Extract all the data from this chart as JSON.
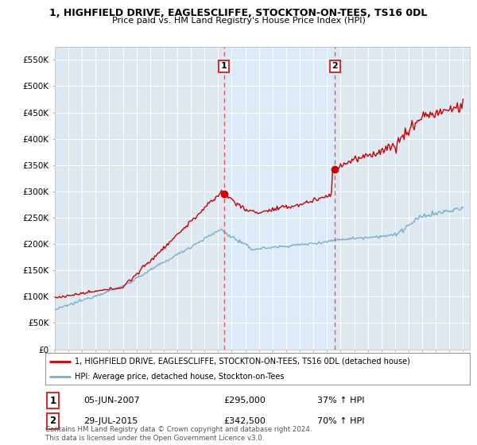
{
  "title_line1": "1, HIGHFIELD DRIVE, EAGLESCLIFFE, STOCKTON-ON-TEES, TS16 0DL",
  "title_line2": "Price paid vs. HM Land Registry's House Price Index (HPI)",
  "ylabel_ticks": [
    "£0",
    "£50K",
    "£100K",
    "£150K",
    "£200K",
    "£250K",
    "£300K",
    "£350K",
    "£400K",
    "£450K",
    "£500K",
    "£550K"
  ],
  "ytick_values": [
    0,
    50000,
    100000,
    150000,
    200000,
    250000,
    300000,
    350000,
    400000,
    450000,
    500000,
    550000
  ],
  "ylim": [
    0,
    575000
  ],
  "xlim_start": 1995.0,
  "xlim_end": 2025.5,
  "color_red": "#cc0000",
  "color_blue": "#7aaecc",
  "color_dashed": "#ee5555",
  "color_shade": "#ddeeff",
  "marker1_x": 2007.43,
  "marker1_y": 295000,
  "marker2_x": 2015.58,
  "marker2_y": 342500,
  "legend_line1": "1, HIGHFIELD DRIVE, EAGLESCLIFFE, STOCKTON-ON-TEES, TS16 0DL (detached house)",
  "legend_line2": "HPI: Average price, detached house, Stockton-on-Tees",
  "annotation1_date": "05-JUN-2007",
  "annotation1_price": "£295,000",
  "annotation1_hpi": "37% ↑ HPI",
  "annotation2_date": "29-JUL-2015",
  "annotation2_price": "£342,500",
  "annotation2_hpi": "70% ↑ HPI",
  "footer": "Contains HM Land Registry data © Crown copyright and database right 2024.\nThis data is licensed under the Open Government Licence v3.0.",
  "bg_color": "#ffffff",
  "plot_bg_color": "#dde8f0"
}
